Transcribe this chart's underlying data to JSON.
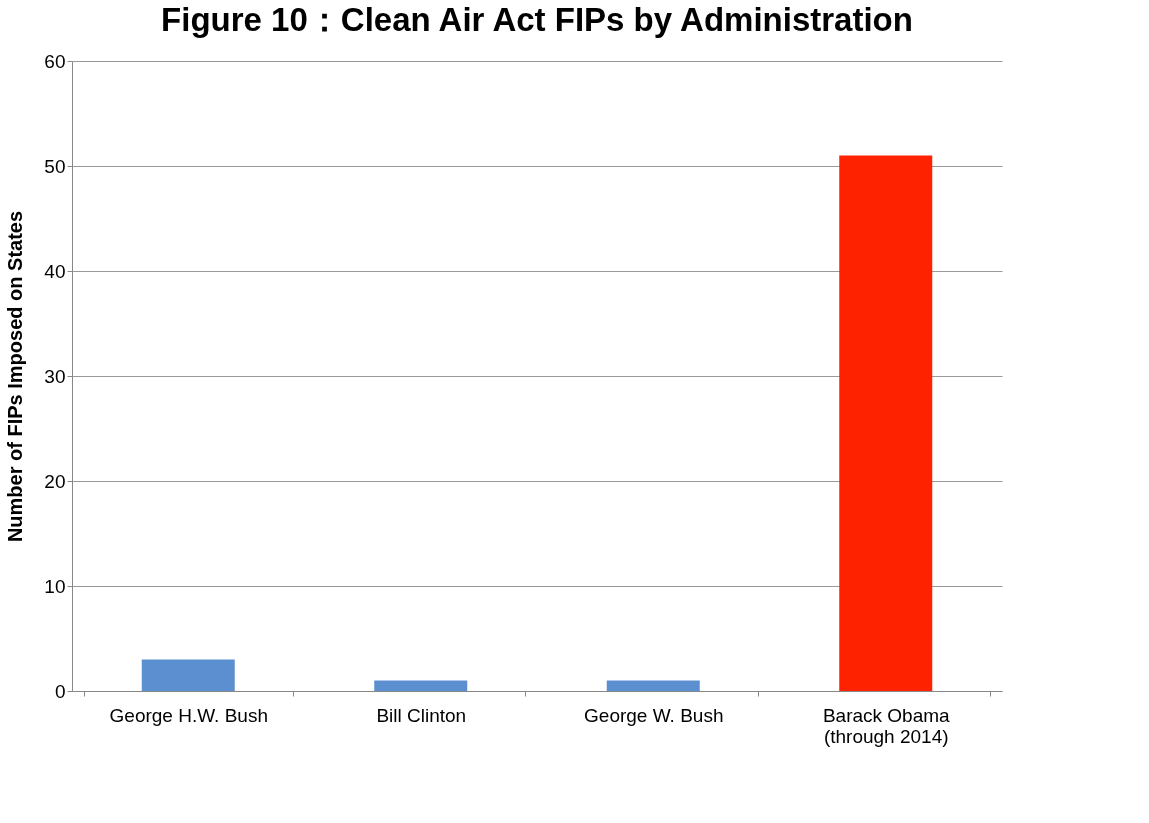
{
  "chart_data": {
    "type": "bar",
    "title": "Figure 10：Clean Air Act FIPs by Administration",
    "ylabel": "Number of FIPs Imposed on States",
    "categories": [
      "George H.W. Bush",
      "Bill Clinton",
      "George W. Bush",
      "Barack Obama\n(through 2014)"
    ],
    "values": [
      3,
      1,
      1,
      51
    ],
    "colors": [
      "#5b8fcf",
      "#5b8fcf",
      "#5b8fcf",
      "#ff2200"
    ],
    "ylim": [
      0,
      60
    ],
    "yticks": [
      0,
      10,
      20,
      30,
      40,
      50,
      60
    ],
    "grid": "y"
  }
}
